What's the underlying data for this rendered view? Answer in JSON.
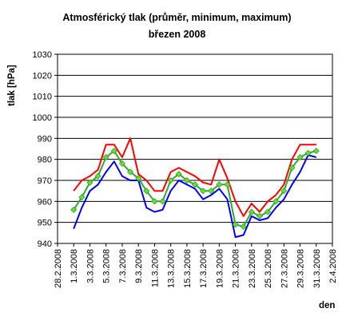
{
  "chart_data": {
    "type": "line",
    "title": "Atmosférický tlak (průměr, minimum, maximum)",
    "subtitle": "březen 2008",
    "xlabel": "den",
    "ylabel": "tlak [hPa]",
    "ylim": [
      940,
      1030
    ],
    "yticks": [
      940,
      950,
      960,
      970,
      980,
      990,
      1000,
      1010,
      1020,
      1030
    ],
    "grid": true,
    "legend": "none",
    "x_tick_labels": [
      "28.2.2008",
      "1.3.2008",
      "3.3.2008",
      "5.3.2008",
      "7.3.2008",
      "9.3.2008",
      "11.3.2008",
      "13.3.2008",
      "15.3.2008",
      "17.3.2008",
      "19.3.2008",
      "21.3.2008",
      "23.3.2008",
      "25.3.2008",
      "27.3.2008",
      "29.3.2008",
      "31.3.2008",
      "2.4.2008"
    ],
    "x_tick_offsets": [
      -2,
      0,
      2,
      4,
      6,
      8,
      10,
      12,
      14,
      16,
      18,
      20,
      22,
      24,
      26,
      28,
      30,
      32
    ],
    "x_range": [
      -2,
      32
    ],
    "x": [
      0,
      1,
      2,
      3,
      4,
      5,
      6,
      7,
      8,
      9,
      10,
      11,
      12,
      13,
      14,
      15,
      16,
      17,
      18,
      19,
      20,
      21,
      22,
      23,
      24,
      25,
      26,
      27,
      28,
      29,
      30
    ],
    "series": [
      {
        "role": "maximum",
        "color": "#ff0000",
        "marker": "none",
        "values": [
          965,
          970,
          972,
          975,
          987,
          987,
          981,
          990,
          973,
          970,
          965,
          965,
          974,
          976,
          974,
          972,
          969,
          968,
          980,
          971,
          960,
          953,
          959,
          955,
          960,
          963,
          968,
          980,
          987,
          987,
          987
        ]
      },
      {
        "role": "minimum",
        "color": "#0000ff",
        "marker": "none",
        "values": [
          947,
          957,
          965,
          968,
          974,
          979,
          972,
          970,
          970,
          957,
          955,
          956,
          965,
          970,
          968,
          966,
          961,
          963,
          966,
          961,
          943,
          944,
          953,
          951,
          952,
          957,
          961,
          968,
          974,
          982,
          981
        ]
      },
      {
        "role": "průměr",
        "color": "#2eaa2e",
        "marker": "diamond",
        "marker_color": "#66dd33",
        "values": [
          956,
          962,
          969,
          972,
          981,
          984,
          978,
          974,
          971,
          965,
          960,
          960,
          970,
          973,
          970,
          968,
          965,
          965,
          968,
          968,
          949,
          948,
          955,
          953,
          955,
          960,
          965,
          976,
          981,
          983,
          984
        ]
      }
    ]
  }
}
